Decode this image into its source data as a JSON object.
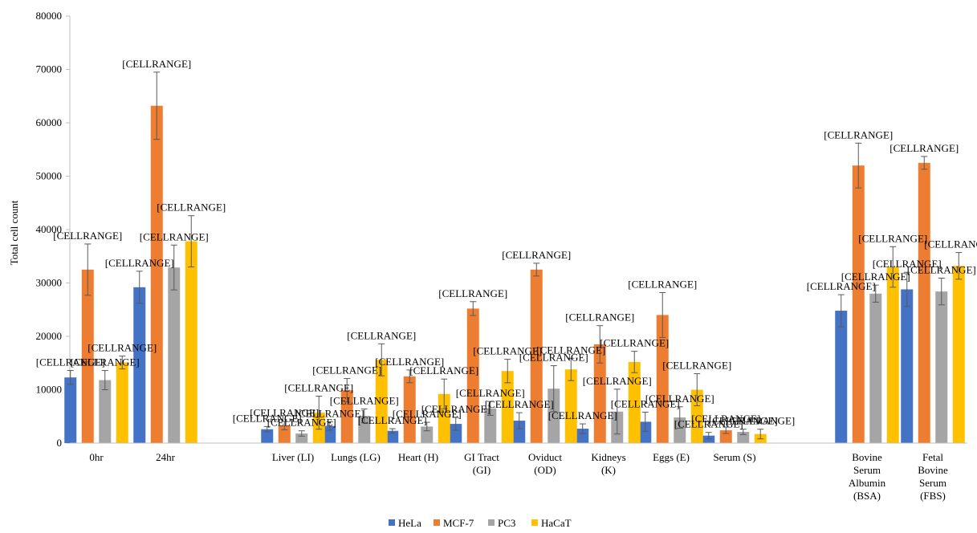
{
  "chart_data": {
    "type": "bar",
    "ylabel": "Total cell count",
    "ylim": [
      0,
      80000
    ],
    "yticks": [
      0,
      10000,
      20000,
      30000,
      40000,
      50000,
      60000,
      70000,
      80000
    ],
    "ytick_labels": [
      "0",
      "10000",
      "20000",
      "30000",
      "40000",
      "50000",
      "60000",
      "70000",
      "80000"
    ],
    "data_label_text": "[CELLRANGE]",
    "legend_position": "bottom",
    "grid": false,
    "categories": [
      {
        "lines": [
          "0hr"
        ]
      },
      {
        "lines": [
          "24hr"
        ]
      },
      {
        "lines": [
          "Liver (LI)"
        ]
      },
      {
        "lines": [
          "Lungs (LG)"
        ]
      },
      {
        "lines": [
          "Heart (H)"
        ]
      },
      {
        "lines": [
          "GI Tract",
          "(GI)"
        ]
      },
      {
        "lines": [
          "Oviduct",
          "(OD)"
        ]
      },
      {
        "lines": [
          "Kidneys",
          "(K)"
        ]
      },
      {
        "lines": [
          "Eggs (E)"
        ]
      },
      {
        "lines": [
          "Serum (S)"
        ]
      },
      {
        "lines": [
          "Bovine",
          "Serum",
          "Albumin",
          "(BSA)"
        ]
      },
      {
        "lines": [
          "Fetal",
          "Bovine",
          "Serum",
          "(FBS)"
        ]
      }
    ],
    "series": [
      {
        "name": "HeLa",
        "color": "#4472C4",
        "values": [
          12300,
          29200,
          2600,
          3200,
          2300,
          3600,
          4200,
          2700,
          4000,
          1400,
          24800,
          28800
        ],
        "errors": [
          1300,
          3000,
          500,
          800,
          400,
          1200,
          1500,
          900,
          1800,
          600,
          3000,
          3200
        ]
      },
      {
        "name": "MCF-7",
        "color": "#ED7D31",
        "values": [
          32500,
          63200,
          3300,
          9900,
          12500,
          25200,
          32500,
          18500,
          24000,
          2400,
          52000,
          52500
        ],
        "errors": [
          4800,
          6300,
          800,
          2200,
          1200,
          1300,
          1200,
          3500,
          4200,
          600,
          4200,
          1200
        ]
      },
      {
        "name": "PC3",
        "color": "#A5A5A5",
        "values": [
          11800,
          32900,
          1800,
          5100,
          3100,
          6500,
          10200,
          5900,
          4800,
          2100,
          28000,
          28400
        ],
        "errors": [
          1800,
          4200,
          500,
          1300,
          800,
          1300,
          4300,
          4200,
          2000,
          500,
          1600,
          2500
        ]
      },
      {
        "name": "HaCaT",
        "color": "#FFC000",
        "values": [
          15100,
          37800,
          5700,
          15600,
          9200,
          13500,
          13800,
          15200,
          10000,
          1700,
          33000,
          33200
        ],
        "errors": [
          1200,
          4800,
          3100,
          3000,
          2800,
          2200,
          2100,
          2000,
          3000,
          900,
          3800,
          2500
        ]
      }
    ]
  }
}
